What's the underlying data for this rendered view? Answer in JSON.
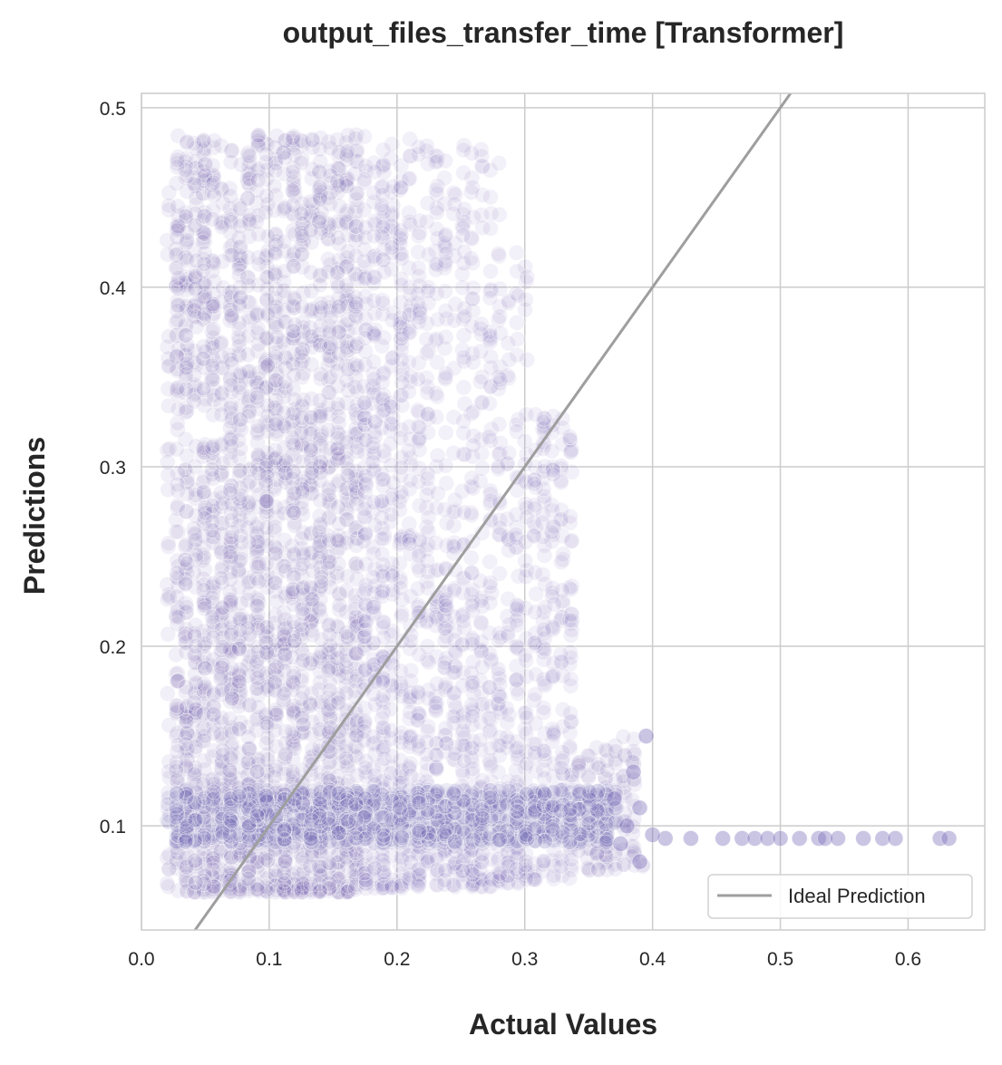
{
  "chart_data": {
    "type": "scatter",
    "title": "output_files_transfer_time [Transformer]",
    "xlabel": "Actual Values",
    "ylabel": "Predictions",
    "xlim": [
      0.0,
      0.66
    ],
    "ylim": [
      0.042,
      0.508
    ],
    "x_ticks": [
      0.0,
      0.1,
      0.2,
      0.3,
      0.4,
      0.5,
      0.6
    ],
    "y_ticks": [
      0.1,
      0.2,
      0.3,
      0.4,
      0.5
    ],
    "x_tick_labels": [
      "0.0",
      "0.1",
      "0.2",
      "0.3",
      "0.4",
      "0.5",
      "0.6"
    ],
    "y_tick_labels": [
      "0.1",
      "0.2",
      "0.3",
      "0.4",
      "0.5"
    ],
    "grid": true,
    "legend": {
      "placement": "bottom-right",
      "entries": [
        "Ideal Prediction"
      ]
    },
    "series": [
      {
        "kind": "scatter",
        "color": "#7b6fb8",
        "regions": [
          {
            "x_range": [
              0.022,
              0.17
            ],
            "y_range": [
              0.063,
              0.485
            ]
          },
          {
            "x_range": [
              0.17,
              0.21
            ],
            "y_range": [
              0.065,
              0.485
            ]
          },
          {
            "x_range": [
              0.21,
              0.28
            ],
            "y_range": [
              0.066,
              0.48
            ]
          },
          {
            "x_range": [
              0.28,
              0.3
            ],
            "y_range": [
              0.068,
              0.42
            ]
          },
          {
            "x_range": [
              0.3,
              0.34
            ],
            "y_range": [
              0.07,
              0.33
            ]
          },
          {
            "x_range": [
              0.34,
              0.39
            ],
            "y_range": [
              0.075,
              0.15
            ]
          },
          {
            "x_range": [
              0.022,
              0.37
            ],
            "y_range": [
              0.09,
              0.12
            ]
          }
        ],
        "points": [
          [
            0.41,
            0.093
          ],
          [
            0.43,
            0.093
          ],
          [
            0.455,
            0.093
          ],
          [
            0.47,
            0.093
          ],
          [
            0.48,
            0.093
          ],
          [
            0.49,
            0.093
          ],
          [
            0.5,
            0.093
          ],
          [
            0.515,
            0.093
          ],
          [
            0.53,
            0.093
          ],
          [
            0.535,
            0.093
          ],
          [
            0.545,
            0.093
          ],
          [
            0.565,
            0.093
          ],
          [
            0.58,
            0.093
          ],
          [
            0.59,
            0.093
          ],
          [
            0.625,
            0.093
          ],
          [
            0.632,
            0.093
          ],
          [
            0.37,
            0.115
          ],
          [
            0.38,
            0.1
          ],
          [
            0.39,
            0.11
          ],
          [
            0.395,
            0.15
          ],
          [
            0.385,
            0.13
          ],
          [
            0.39,
            0.08
          ],
          [
            0.375,
            0.09
          ],
          [
            0.4,
            0.095
          ]
        ]
      },
      {
        "kind": "line",
        "name": "Ideal Prediction",
        "color": "#9e9e9e",
        "x": [
          0.0,
          0.66
        ],
        "y": [
          0.0,
          0.66
        ]
      }
    ]
  }
}
